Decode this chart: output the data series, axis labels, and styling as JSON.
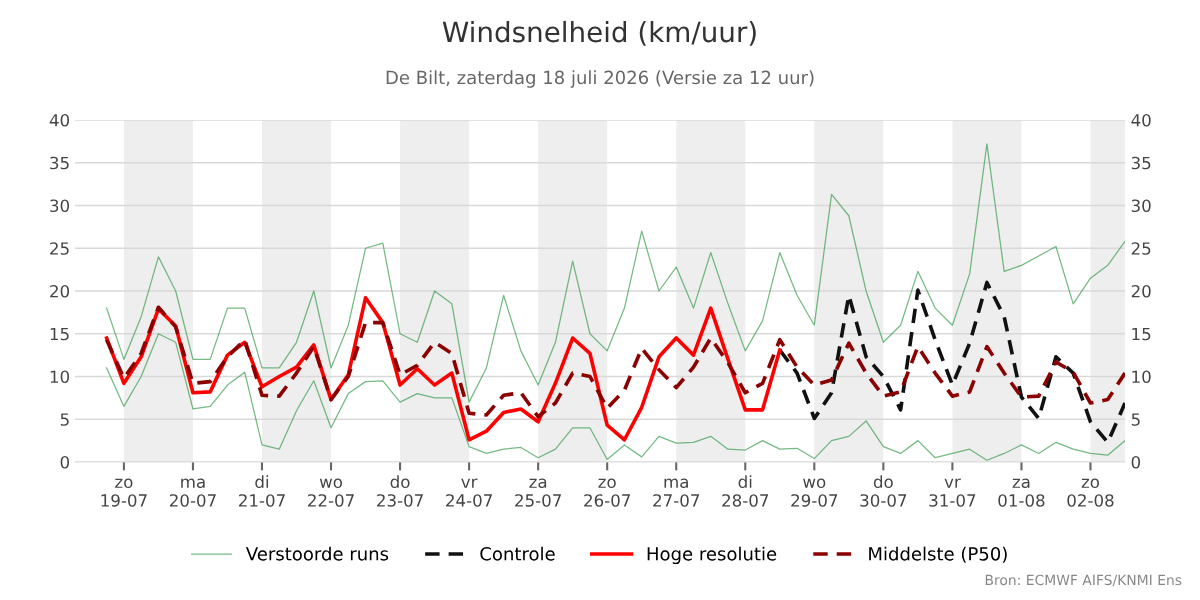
{
  "chart_data": {
    "type": "line",
    "title": "Windsnelheid (km/uur)",
    "subtitle": "De Bilt, zaterdag 18 juli 2026 (Versie za 12 uur)",
    "x": [
      "2026-07-18T18:00",
      "2026-07-19T00:00",
      "2026-07-19T06:00",
      "2026-07-19T12:00",
      "2026-07-19T18:00",
      "2026-07-20T00:00",
      "2026-07-20T06:00",
      "2026-07-20T12:00",
      "2026-07-20T18:00",
      "2026-07-21T00:00",
      "2026-07-21T06:00",
      "2026-07-21T12:00",
      "2026-07-21T18:00",
      "2026-07-22T00:00",
      "2026-07-22T06:00",
      "2026-07-22T12:00",
      "2026-07-22T18:00",
      "2026-07-23T00:00",
      "2026-07-23T06:00",
      "2026-07-23T12:00",
      "2026-07-23T18:00",
      "2026-07-24T00:00",
      "2026-07-24T06:00",
      "2026-07-24T12:00",
      "2026-07-24T18:00",
      "2026-07-25T00:00",
      "2026-07-25T06:00",
      "2026-07-25T12:00",
      "2026-07-25T18:00",
      "2026-07-26T00:00",
      "2026-07-26T06:00",
      "2026-07-26T12:00",
      "2026-07-26T18:00",
      "2026-07-27T00:00",
      "2026-07-27T06:00",
      "2026-07-27T12:00",
      "2026-07-27T18:00",
      "2026-07-28T00:00",
      "2026-07-28T06:00",
      "2026-07-28T12:00",
      "2026-07-28T18:00",
      "2026-07-29T00:00",
      "2026-07-29T06:00",
      "2026-07-29T12:00",
      "2026-07-29T18:00",
      "2026-07-30T00:00",
      "2026-07-30T06:00",
      "2026-07-30T12:00",
      "2026-07-30T18:00",
      "2026-07-31T00:00",
      "2026-07-31T06:00",
      "2026-07-31T12:00",
      "2026-07-31T18:00",
      "2026-08-01T00:00",
      "2026-08-01T06:00",
      "2026-08-01T12:00",
      "2026-08-01T18:00",
      "2026-08-02T00:00",
      "2026-08-02T06:00",
      "2026-08-02T12:00"
    ],
    "series": [
      {
        "name": "Verstoorde runs",
        "color": "#3a9d4e",
        "line_style": "solid",
        "values": [
          18,
          12,
          17,
          24,
          20,
          12,
          12,
          18,
          18,
          11,
          11,
          14,
          20,
          11,
          16,
          25,
          25.6,
          15,
          14,
          20,
          18.5,
          7,
          11,
          19.5,
          13,
          9,
          14,
          23.5,
          15,
          13,
          18,
          27,
          20,
          22.8,
          18,
          24.5,
          18.5,
          13,
          16.5,
          24.5,
          19.5,
          16,
          31.3,
          28.8,
          20,
          14,
          16,
          22.3,
          18,
          16,
          22,
          37.2,
          22.3,
          23,
          24.1,
          25.2,
          18.5,
          21.5,
          23,
          25.8
        ]
      },
      {
        "color": "#3a9d4e",
        "line_style": "solid",
        "values": [
          11,
          6.5,
          10,
          15,
          14,
          6.2,
          6.5,
          9,
          10.5,
          2,
          1.5,
          6,
          9.5,
          4,
          8,
          9.4,
          9.5,
          7,
          8,
          7.5,
          7.5,
          1.8,
          1,
          1.5,
          1.7,
          0.5,
          1.5,
          4,
          4,
          0.3,
          2,
          0.6,
          3,
          2.2,
          2.3,
          3,
          1.5,
          1.4,
          2.5,
          1.5,
          1.6,
          0.4,
          2.5,
          3,
          4.8,
          1.8,
          1,
          2.5,
          0.5,
          1,
          1.5,
          0.2,
          1,
          2,
          1,
          2.3,
          1.5,
          1,
          0.8,
          2.5
        ]
      },
      {
        "name": "Controle",
        "color": "#111111",
        "line_style": "dashed",
        "x": [
          "2026-07-28T12:00",
          "2026-07-28T18:00",
          "2026-07-29T00:00",
          "2026-07-29T06:00",
          "2026-07-29T12:00",
          "2026-07-29T18:00",
          "2026-07-30T00:00",
          "2026-07-30T06:00",
          "2026-07-30T12:00",
          "2026-07-30T18:00",
          "2026-07-31T00:00",
          "2026-07-31T06:00",
          "2026-07-31T12:00",
          "2026-07-31T18:00",
          "2026-08-01T00:00",
          "2026-08-01T06:00",
          "2026-08-01T12:00",
          "2026-08-01T18:00",
          "2026-08-02T00:00",
          "2026-08-02T06:00",
          "2026-08-02T12:00"
        ],
        "values": [
          13.1,
          10.4,
          5.1,
          8.1,
          19.5,
          12.3,
          10.0,
          6.1,
          20.1,
          14.3,
          9.0,
          13.9,
          21.0,
          17.0,
          7.6,
          5.1,
          12.3,
          10.4,
          4.7,
          2.3,
          6.9
        ]
      },
      {
        "name": "Hoge resolutie",
        "color": "#ff0000",
        "line_style": "solid",
        "x": [
          "2026-07-18T18:00",
          "2026-07-19T00:00",
          "2026-07-19T06:00",
          "2026-07-19T12:00",
          "2026-07-19T18:00",
          "2026-07-20T00:00",
          "2026-07-20T06:00",
          "2026-07-20T12:00",
          "2026-07-20T18:00",
          "2026-07-21T00:00",
          "2026-07-21T06:00",
          "2026-07-21T12:00",
          "2026-07-21T18:00",
          "2026-07-22T00:00",
          "2026-07-22T06:00",
          "2026-07-22T12:00",
          "2026-07-22T18:00",
          "2026-07-23T00:00",
          "2026-07-23T06:00",
          "2026-07-23T12:00",
          "2026-07-23T18:00",
          "2026-07-24T00:00",
          "2026-07-24T06:00",
          "2026-07-24T12:00",
          "2026-07-24T18:00",
          "2026-07-25T00:00",
          "2026-07-25T06:00",
          "2026-07-25T12:00",
          "2026-07-25T18:00",
          "2026-07-26T00:00",
          "2026-07-26T06:00",
          "2026-07-26T12:00",
          "2026-07-26T18:00",
          "2026-07-27T00:00",
          "2026-07-27T06:00",
          "2026-07-27T12:00",
          "2026-07-27T18:00",
          "2026-07-28T00:00",
          "2026-07-28T06:00",
          "2026-07-28T12:00"
        ],
        "values": [
          14.5,
          9.2,
          12.3,
          17.9,
          15.9,
          8.1,
          8.2,
          12.5,
          14.0,
          8.8,
          10.0,
          11.1,
          13.7,
          7.3,
          10.2,
          19.2,
          16.3,
          9.0,
          10.9,
          9.0,
          10.4,
          2.6,
          3.6,
          5.8,
          6.2,
          4.7,
          9.2,
          14.5,
          12.7,
          4.3,
          2.6,
          6.4,
          12.3,
          14.5,
          12.5,
          18.0,
          12.0,
          6.1,
          6.1,
          13.1
        ]
      },
      {
        "name": "Middelste (P50)",
        "color": "#8b0000",
        "line_style": "dashed",
        "values": [
          14.3,
          9.8,
          12.7,
          18.1,
          15.8,
          9.2,
          9.4,
          12.3,
          14.3,
          7.8,
          7.7,
          10.4,
          13.5,
          7.3,
          10.0,
          16.3,
          16.3,
          10.2,
          11.3,
          14.0,
          12.7,
          5.7,
          5.5,
          7.8,
          8.1,
          5.3,
          6.9,
          10.4,
          10.0,
          6.3,
          8.4,
          13.3,
          10.8,
          8.7,
          11.1,
          14.5,
          11.6,
          8.1,
          9.2,
          14.3,
          11.1,
          9.0,
          9.6,
          13.9,
          10.4,
          7.7,
          8.2,
          13.5,
          10.4,
          7.7,
          8.2,
          13.5,
          10.4,
          7.6,
          7.7,
          11.7,
          10.5,
          6.9,
          7.3,
          10.4
        ]
      }
    ],
    "xlim": [
      "2026-07-18T07:00",
      "2026-08-02T12:00"
    ],
    "xticks": [
      {
        "value": "2026-07-19",
        "label": "zo\n19-07"
      },
      {
        "value": "2026-07-20",
        "label": "ma\n20-07"
      },
      {
        "value": "2026-07-21",
        "label": "di\n21-07"
      },
      {
        "value": "2026-07-22",
        "label": "wo\n22-07"
      },
      {
        "value": "2026-07-23",
        "label": "do\n23-07"
      },
      {
        "value": "2026-07-24",
        "label": "vr\n24-07"
      },
      {
        "value": "2026-07-25",
        "label": "za\n25-07"
      },
      {
        "value": "2026-07-26",
        "label": "zo\n26-07"
      },
      {
        "value": "2026-07-27",
        "label": "ma\n27-07"
      },
      {
        "value": "2026-07-28",
        "label": "di\n28-07"
      },
      {
        "value": "2026-07-29",
        "label": "wo\n29-07"
      },
      {
        "value": "2026-07-30",
        "label": "do\n30-07"
      },
      {
        "value": "2026-07-31",
        "label": "vr\n31-07"
      },
      {
        "value": "2026-08-01",
        "label": "za\n01-08"
      },
      {
        "value": "2026-08-02",
        "label": "zo\n02-08"
      }
    ],
    "ylim": [
      0,
      40
    ],
    "yticks": [
      0,
      5,
      10,
      15,
      20,
      25,
      30,
      35,
      40
    ],
    "y2lim": [
      0,
      40
    ],
    "y2ticks": [
      0,
      5,
      10,
      15,
      20,
      25,
      30,
      35,
      40
    ],
    "bands": [
      {
        "axis": "x",
        "from": "2026-07-19",
        "to": "2026-07-20",
        "color": "#eeeeee"
      },
      {
        "axis": "x",
        "from": "2026-07-21",
        "to": "2026-07-22",
        "color": "#eeeeee"
      },
      {
        "axis": "x",
        "from": "2026-07-23",
        "to": "2026-07-24",
        "color": "#eeeeee"
      },
      {
        "axis": "x",
        "from": "2026-07-25",
        "to": "2026-07-26",
        "color": "#eeeeee"
      },
      {
        "axis": "x",
        "from": "2026-07-27",
        "to": "2026-07-28",
        "color": "#eeeeee"
      },
      {
        "axis": "x",
        "from": "2026-07-29",
        "to": "2026-07-30",
        "color": "#eeeeee"
      },
      {
        "axis": "x",
        "from": "2026-07-31",
        "to": "2026-08-01",
        "color": "#eeeeee"
      },
      {
        "axis": "x",
        "from": "2026-08-02",
        "to": "2026-08-02T12:00",
        "color": "#eeeeee"
      }
    ],
    "grid": "y",
    "legend": "bottom",
    "marker": "none",
    "annotations": [
      "Bron: ECMWF AIFS/KNMI Ens"
    ]
  }
}
